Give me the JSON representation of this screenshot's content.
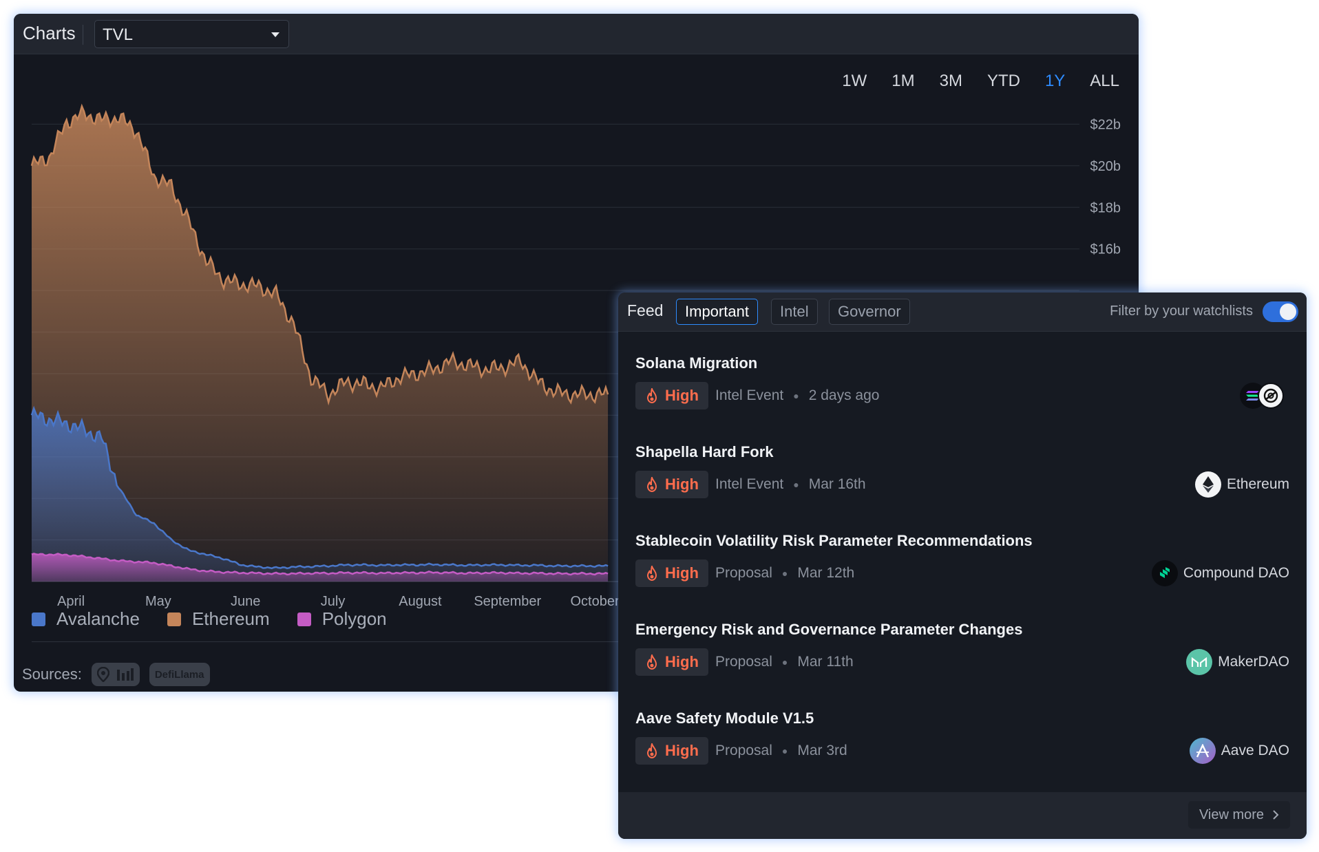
{
  "charts": {
    "title": "Charts",
    "metric": "TVL",
    "range_tabs": [
      "1W",
      "1M",
      "3M",
      "YTD",
      "1Y",
      "ALL"
    ],
    "active_range": "1Y",
    "legend": [
      {
        "label": "Avalanche",
        "color": "#4a77c9"
      },
      {
        "label": "Ethereum",
        "color": "#c4855a"
      },
      {
        "label": "Polygon",
        "color": "#c45cc4"
      }
    ],
    "sources_label": "Sources:",
    "sources": [
      "DefiLlama"
    ]
  },
  "chart_data": {
    "type": "area",
    "title": "",
    "xlabel": "",
    "ylabel": "",
    "x_tick_labels": [
      "April",
      "May",
      "June",
      "July",
      "August",
      "September",
      "October"
    ],
    "y_tick_labels": [
      "$22b",
      "$20b",
      "$18b",
      "$16b"
    ],
    "ylim": [
      0,
      24
    ],
    "y_unit": "billions USD",
    "grid": true,
    "legend_position": "bottom-left",
    "x": [
      0,
      0.2,
      0.4,
      0.6,
      0.8,
      1.0,
      1.2,
      1.4,
      1.6,
      1.8,
      2.0,
      2.2,
      2.4,
      2.6,
      2.8,
      3.0,
      3.2,
      3.4,
      3.6,
      3.8,
      4.0,
      4.2,
      4.4,
      4.6,
      4.8,
      5.0,
      5.2,
      5.4,
      5.6,
      5.8,
      6.0,
      6.2,
      6.4,
      6.6
    ],
    "series": [
      {
        "name": "Ethereum",
        "color": "#c4855a",
        "values": [
          20.0,
          20.4,
          22.1,
          22.5,
          22.2,
          22.3,
          21.7,
          19.5,
          19.0,
          17.3,
          15.4,
          14.5,
          14.3,
          14.2,
          13.8,
          12.4,
          9.8,
          9.0,
          9.6,
          9.5,
          9.3,
          9.8,
          10.0,
          10.2,
          10.6,
          10.4,
          10.2,
          10.3,
          10.6,
          9.6,
          9.1,
          9.0,
          9.0,
          9.0
        ]
      },
      {
        "name": "Avalanche",
        "color": "#4a77c9",
        "values": [
          8.0,
          7.8,
          7.6,
          7.3,
          6.9,
          4.5,
          3.2,
          2.8,
          2.0,
          1.5,
          1.3,
          1.1,
          0.8,
          0.7,
          0.65,
          0.7,
          0.72,
          0.75,
          0.8,
          0.8,
          0.78,
          0.8,
          0.8,
          0.82,
          0.8,
          0.78,
          0.8,
          0.8,
          0.78,
          0.78,
          0.75,
          0.75,
          0.75,
          0.75
        ]
      },
      {
        "name": "Polygon",
        "color": "#c45cc4",
        "values": [
          1.3,
          1.3,
          1.28,
          1.2,
          1.1,
          1.0,
          0.95,
          0.9,
          0.75,
          0.6,
          0.5,
          0.45,
          0.42,
          0.4,
          0.38,
          0.38,
          0.4,
          0.4,
          0.42,
          0.42,
          0.4,
          0.42,
          0.42,
          0.44,
          0.42,
          0.4,
          0.42,
          0.42,
          0.4,
          0.4,
          0.38,
          0.38,
          0.38,
          0.38
        ]
      }
    ]
  },
  "feed": {
    "title": "Feed",
    "tabs": [
      "Important",
      "Intel",
      "Governor"
    ],
    "active_tab": "Important",
    "filter_label": "Filter by your watchlists",
    "filter_enabled": true,
    "items": [
      {
        "title": "Solana Migration",
        "severity": "High",
        "type": "Intel Event",
        "date": "2 days ago",
        "entity": ""
      },
      {
        "title": "Shapella Hard Fork",
        "severity": "High",
        "type": "Intel Event",
        "date": "Mar 16th",
        "entity": "Ethereum"
      },
      {
        "title": "Stablecoin Volatility Risk Parameter Recommendations",
        "severity": "High",
        "type": "Proposal",
        "date": "Mar 12th",
        "entity": "Compound DAO"
      },
      {
        "title": "Emergency Risk and Governance Parameter Changes",
        "severity": "High",
        "type": "Proposal",
        "date": "Mar 11th",
        "entity": "MakerDAO"
      },
      {
        "title": "Aave Safety Module V1.5",
        "severity": "High",
        "type": "Proposal",
        "date": "Mar 3rd",
        "entity": "Aave DAO"
      }
    ],
    "view_more_label": "View more"
  }
}
